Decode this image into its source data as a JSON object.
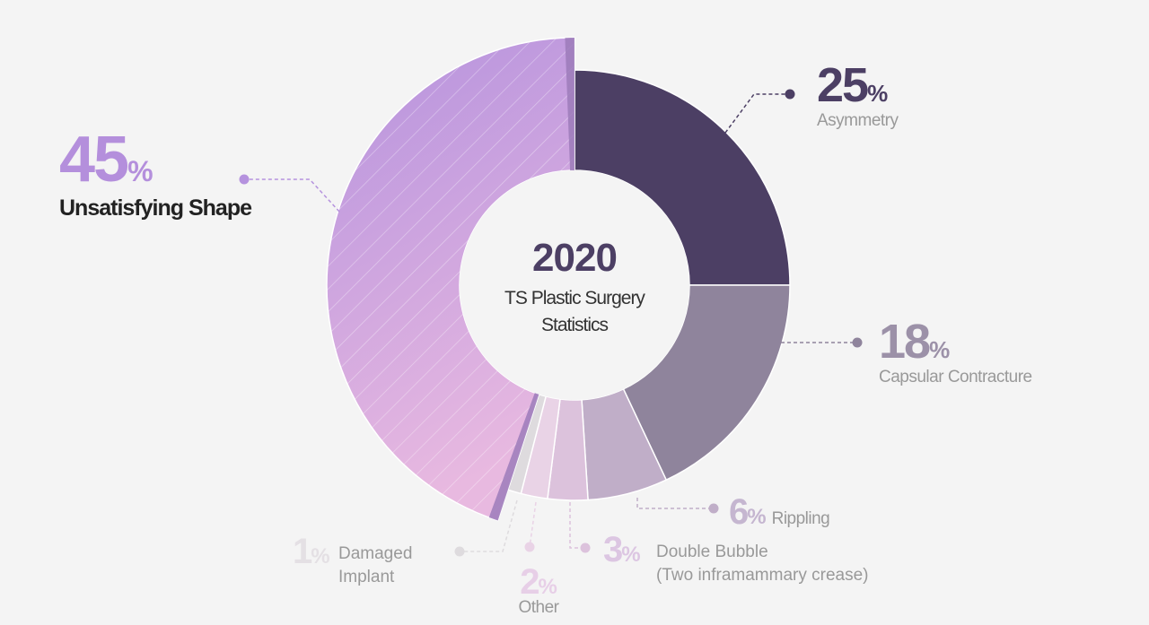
{
  "center": {
    "year": "2020",
    "subtitle_line1": "TS Plastic Surgery",
    "subtitle_line2": "Statistics"
  },
  "chart_data": {
    "type": "pie",
    "style": "donut",
    "slices": [
      {
        "label": "Asymmetry",
        "value": 25,
        "pct_text": "25",
        "color": "#4c3f64"
      },
      {
        "label": "Capsular Contracture",
        "value": 18,
        "pct_text": "18",
        "color": "#8f849c"
      },
      {
        "label": "Rippling",
        "value": 6,
        "pct_text": "6",
        "color": "#c0aec8"
      },
      {
        "label": "Double Bubble",
        "sublabel": "(Two inframammary crease)",
        "value": 3,
        "pct_text": "3",
        "color": "#dcc2dc"
      },
      {
        "label": "Other",
        "value": 2,
        "pct_text": "2",
        "color": "#e9d3e6"
      },
      {
        "label": "Damaged Implant",
        "label_line1": "Damaged",
        "label_line2": "Implant",
        "value": 1,
        "pct_text": "1",
        "color": "#dedbde"
      },
      {
        "label": "Unsatisfying Shape",
        "value": 45,
        "pct_text": "45",
        "color": "#b592de",
        "color_end": "#e8b9e0",
        "pattern": "diagonal-stripes",
        "edge_color": "#9c7bba"
      }
    ],
    "percent_sign": "%"
  }
}
